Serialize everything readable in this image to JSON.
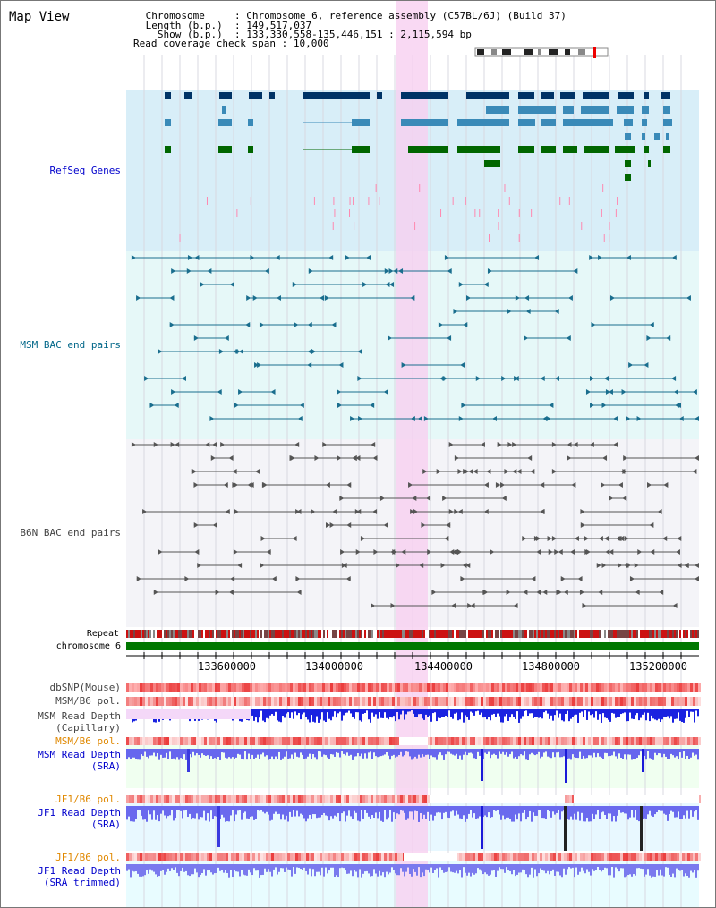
{
  "view_title": "Map View",
  "info": {
    "lines": [
      {
        "key": " Chromosome     ",
        "value": "Chromosome 6, reference assembly (C57BL/6J) (Build 37)"
      },
      {
        "key": " Length (b.p.)  ",
        "value": "149,517,037"
      },
      {
        "key": "   Show (b.p.)  ",
        "value": "133,330,558-135,446,151 : 2,115,594 bp"
      },
      {
        "key": "Read coverage check span ",
        "value": "10,000"
      }
    ]
  },
  "tracks": {
    "refseq_genes": {
      "label": "RefSeq Genes",
      "color": "#0000cc"
    },
    "msm_bac": {
      "label": "MSM BAC end pairs",
      "color": "#006688"
    },
    "b6n_bac": {
      "label": "B6N BAC end pairs",
      "color": "#444444"
    },
    "repeat": {
      "label": "Repeat"
    },
    "chromosome": {
      "label": "chromosome 6"
    },
    "dbsnp": {
      "label": "dbSNP(Mouse)",
      "color": "#444444"
    },
    "msm_b6_pol": {
      "label": "MSM/B6 pol.",
      "color": "#444444"
    },
    "msm_depth_cap": {
      "label": "MSM Read Depth",
      "sub": "(Capillary)",
      "color": "#444444"
    },
    "msm_b6_pol_sra": {
      "label": "MSM/B6 pol.",
      "color": "#e08800"
    },
    "msm_depth_sra": {
      "label": "MSM Read Depth",
      "sub": "(SRA)",
      "color": "#0000cc"
    },
    "jf1_b6_pol": {
      "label": "JF1/B6 pol.",
      "color": "#e08800"
    },
    "jf1_depth_sra": {
      "label": "JF1 Read Depth",
      "sub": "(SRA)",
      "color": "#0000cc"
    },
    "jf1_b6_pol2": {
      "label": "JF1/B6 pol.",
      "color": "#e08800"
    },
    "jf1_depth_trim": {
      "label": "JF1 Read Depth",
      "sub": "(SRA trimmed)",
      "color": "#0000cc"
    }
  },
  "axis": {
    "ticks": [
      "133600000",
      "134000000",
      "134400000",
      "134800000",
      "135200000"
    ]
  },
  "colors": {
    "refseq_bg": "#d8eef8",
    "msm_bac_bg": "#e6f8f8",
    "b6n_bg": "#f4f4f8",
    "highlight": "#f8d0f0",
    "gene_dark": "#003366",
    "gene_mid": "#3a8ab8",
    "gene_green": "#006600",
    "chromosome_green": "#007700"
  }
}
